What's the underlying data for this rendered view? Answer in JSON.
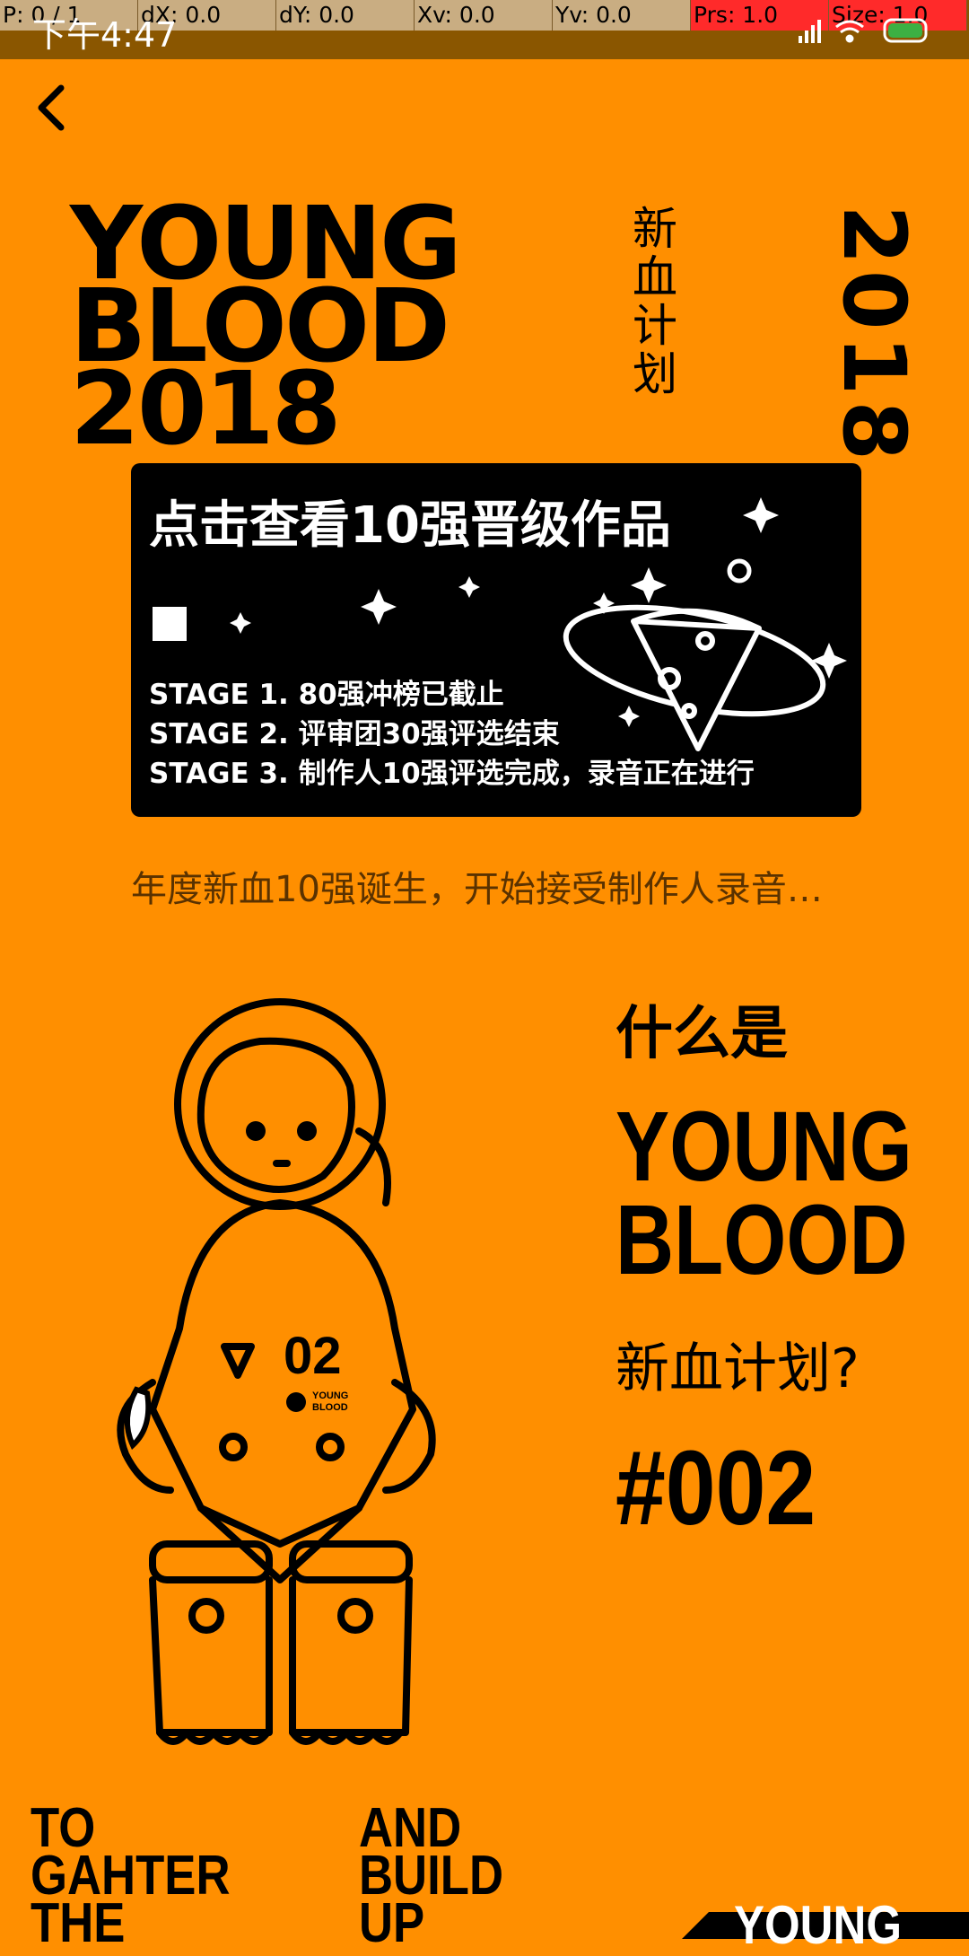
{
  "debug": {
    "cells": [
      "P: 0 / 1",
      "dX: 0.0",
      "dY: 0.0",
      "Xv: 0.0",
      "Yv: 0.0",
      "Prs: 1.0",
      "Size: 1.0"
    ]
  },
  "status_bar": {
    "time": "下午4:47"
  },
  "hero": {
    "title_lines": [
      "YOUNG",
      "BLOOD",
      "2018"
    ],
    "vertical_cn": "新血计划",
    "vertical_year": "2018"
  },
  "promo": {
    "headline": "点击查看10强晋级作品",
    "stages": [
      "STAGE 1. 80强冲榜已截止",
      "STAGE 2. 评审团30强评选结束",
      "STAGE 3. 制作人10强评选完成，录音正在进行"
    ]
  },
  "subtitle": "年度新血10强诞生，开始接受制作人录音…",
  "astronaut": {
    "chest_number": "02",
    "chest_brand_lines": [
      "YOUNG",
      "BLOOD"
    ]
  },
  "question": {
    "lead": "什么是",
    "title_lines": [
      "YOUNG",
      "BLOOD"
    ],
    "sub": "新血计划?",
    "number": "#002"
  },
  "footer": {
    "left_lines": [
      "TO",
      "GAHTER",
      "THE"
    ],
    "right_lines": [
      "AND",
      "BUILD",
      "UP"
    ],
    "badge": "YOUNG"
  },
  "colors": {
    "background": "#FF8F00",
    "status_bar": "#8A5600",
    "card": "#000000"
  }
}
